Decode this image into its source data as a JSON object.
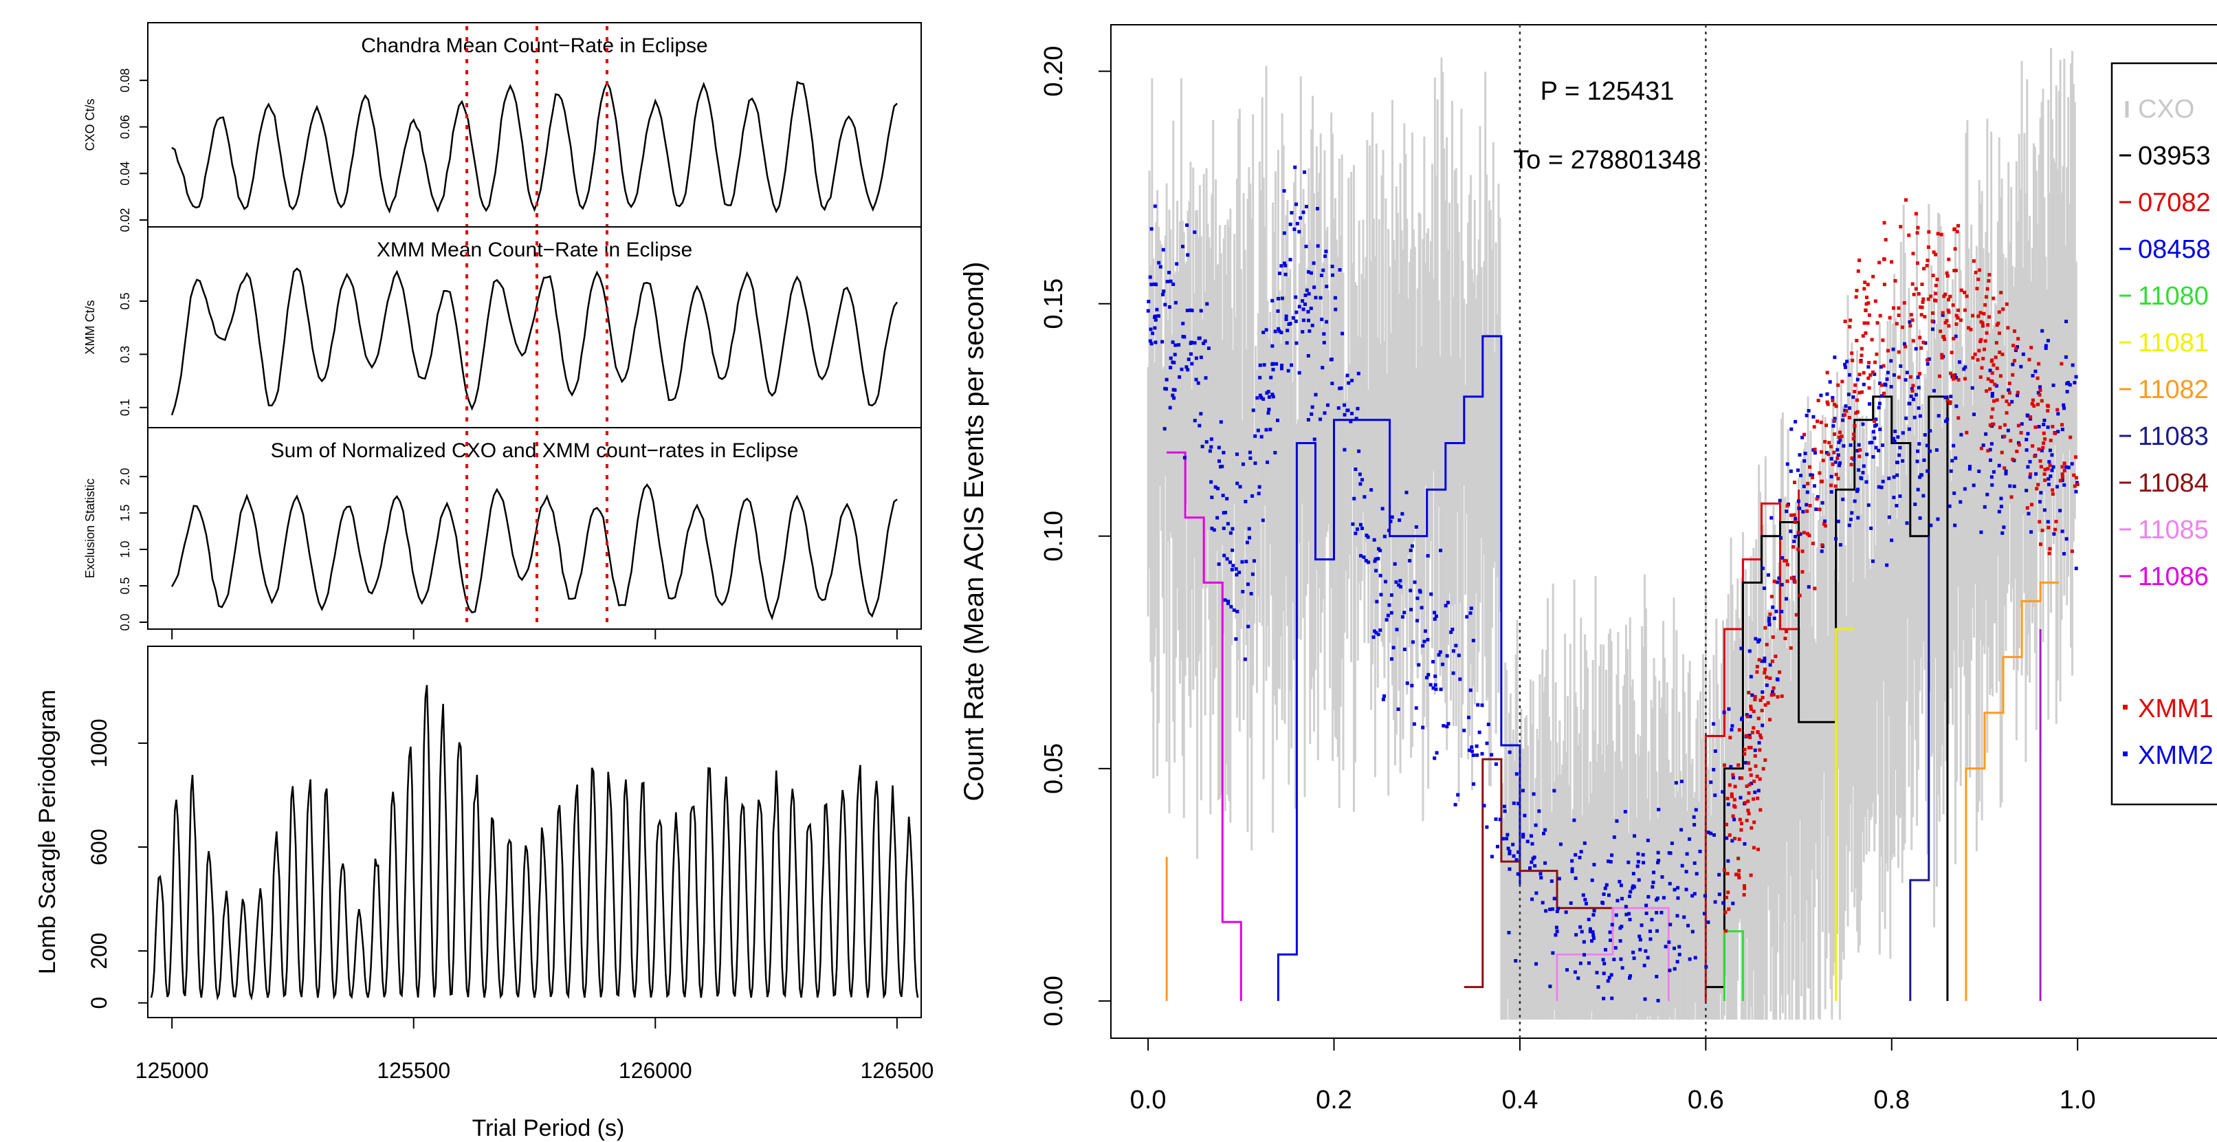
{
  "figure": {
    "left_panels": [
      {
        "id": "cxo",
        "title": "Chandra Mean Count−Rate in Eclipse",
        "ylabel": "CXO Ct/s"
      },
      {
        "id": "xmm",
        "title": "XMM Mean Count−Rate in Eclipse",
        "ylabel": "XMM Ct/s"
      },
      {
        "id": "sum",
        "title": "Sum of Normalized CXO and XMM count−rates in Eclipse",
        "ylabel": "Exclusion Statistic"
      }
    ],
    "lomb": {
      "ylabel": "Lomb Scargle Periodogram",
      "xlabel": "Trial Period (s)"
    },
    "right": {
      "ylabel": "Count Rate (Mean ACIS Events per second)",
      "annotation_period": "P = 125431",
      "annotation_t0": "To = 278801348",
      "legend": [
        {
          "label": "CXO",
          "color": "#c8c8c8",
          "marker": "bar"
        },
        {
          "label": "03953",
          "color": "#000000",
          "marker": "line"
        },
        {
          "label": "07082",
          "color": "#e00000",
          "marker": "line"
        },
        {
          "label": "08458",
          "color": "#0000e0",
          "marker": "line"
        },
        {
          "label": "11080",
          "color": "#33dd33",
          "marker": "line"
        },
        {
          "label": "11081",
          "color": "#f0f000",
          "marker": "line"
        },
        {
          "label": "11082",
          "color": "#ff9a1e",
          "marker": "line"
        },
        {
          "label": "11083",
          "color": "#1a1a8c",
          "marker": "line"
        },
        {
          "label": "11084",
          "color": "#8b1010",
          "marker": "line"
        },
        {
          "label": "11085",
          "color": "#ee82ee",
          "marker": "line"
        },
        {
          "label": "11086",
          "color": "#e000e0",
          "marker": "line"
        },
        {
          "label": "XMM1",
          "color": "#e00000",
          "marker": "dot"
        },
        {
          "label": "XMM2",
          "color": "#0000e0",
          "marker": "dot"
        }
      ]
    }
  },
  "chart_data": [
    {
      "type": "line",
      "title": "Chandra Mean Count−Rate in Eclipse",
      "ylabel": "CXO Ct/s",
      "xlim": [
        124950,
        126550
      ],
      "ylim": [
        0.02,
        0.09
      ],
      "yticks": [
        "0.02",
        "0.04",
        "0.06",
        "0.08"
      ],
      "vlines": [
        125610,
        125755,
        125900
      ],
      "series": [
        {
          "values": [
            0.05,
            0.025,
            0.065,
            0.025,
            0.07,
            0.025,
            0.068,
            0.025,
            0.073,
            0.025,
            0.062,
            0.025,
            0.07,
            0.025,
            0.078,
            0.025,
            0.075,
            0.025,
            0.078,
            0.025,
            0.07,
            0.025,
            0.078,
            0.025,
            0.072,
            0.025,
            0.08,
            0.025,
            0.065,
            0.025,
            0.07
          ]
        }
      ]
    },
    {
      "type": "line",
      "title": "XMM Mean Count−Rate in Eclipse",
      "ylabel": "XMM Ct/s",
      "xlim": [
        124950,
        126550
      ],
      "ylim": [
        0.05,
        0.65
      ],
      "yticks": [
        "0.1",
        "0.3",
        "0.5"
      ],
      "vlines": [
        125610,
        125755,
        125900
      ],
      "series": [
        {
          "values": [
            0.08,
            0.58,
            0.35,
            0.6,
            0.1,
            0.62,
            0.2,
            0.6,
            0.25,
            0.6,
            0.2,
            0.55,
            0.1,
            0.58,
            0.3,
            0.6,
            0.15,
            0.6,
            0.2,
            0.58,
            0.12,
            0.55,
            0.2,
            0.6,
            0.15,
            0.58,
            0.2,
            0.55,
            0.1,
            0.5
          ]
        }
      ]
    },
    {
      "type": "line",
      "title": "Sum of Normalized CXO and XMM count−rates in Eclipse",
      "ylabel": "Exclusion Statistic",
      "xlim": [
        124950,
        126550
      ],
      "ylim": [
        0.0,
        2.2
      ],
      "yticks": [
        "0.0",
        "0.5",
        "1.0",
        "1.5",
        "2.0"
      ],
      "vlines": [
        125610,
        125755,
        125900
      ],
      "series": [
        {
          "values": [
            0.5,
            1.6,
            0.2,
            1.7,
            0.3,
            1.7,
            0.2,
            1.6,
            0.4,
            1.7,
            0.3,
            1.6,
            0.1,
            1.8,
            0.6,
            1.7,
            0.3,
            1.6,
            0.2,
            1.9,
            0.3,
            1.6,
            0.2,
            1.7,
            0.1,
            1.7,
            0.3,
            1.6,
            0.1,
            1.7
          ]
        }
      ]
    },
    {
      "type": "line",
      "title": "",
      "xlabel": "Trial Period (s)",
      "ylabel": "Lomb Scargle Periodogram",
      "xlim": [
        124950,
        126550
      ],
      "ylim": [
        -30,
        1320
      ],
      "xticks": [
        125000,
        125500,
        126000,
        126500
      ],
      "yticks": [
        0,
        200,
        600,
        1000
      ],
      "series": [
        {
          "values": [
            400,
            1000,
            430,
            380,
            900,
            850,
            330,
            870,
            1300,
            1030,
            650,
            640,
            860,
            940,
            870,
            730,
            960,
            830,
            900,
            760,
            950,
            870,
            700
          ]
        }
      ]
    },
    {
      "type": "scatter",
      "title": "",
      "xlabel": "",
      "ylabel": "Count Rate (Mean ACIS Events per second)",
      "xlim": [
        -0.04,
        1.15
      ],
      "ylim": [
        -0.008,
        0.21
      ],
      "xticks": [
        0.0,
        0.2,
        0.4,
        0.6,
        0.8,
        1.0
      ],
      "yticks": [
        0.0,
        0.05,
        0.1,
        0.15,
        0.2
      ],
      "vlines": [
        0.4,
        0.6
      ],
      "legend_position": "top-right",
      "series": [
        {
          "name": "XMM2",
          "x": [
            0.0,
            0.05,
            0.1,
            0.15,
            0.2,
            0.25,
            0.3,
            0.35,
            0.4,
            0.45,
            0.5,
            0.55,
            0.6,
            0.65,
            0.7,
            0.75,
            0.8,
            0.85,
            0.9,
            0.95,
            1.0
          ],
          "y": [
            0.15,
            0.14,
            0.09,
            0.16,
            0.14,
            0.09,
            0.08,
            0.06,
            0.03,
            0.015,
            0.015,
            0.02,
            0.03,
            0.06,
            0.11,
            0.12,
            0.12,
            0.13,
            0.12,
            0.12,
            0.12
          ]
        },
        {
          "name": "XMM1",
          "x": [
            0.62,
            0.65,
            0.7,
            0.75,
            0.8,
            0.85,
            0.9,
            0.95,
            1.0
          ],
          "y": [
            0.03,
            0.05,
            0.1,
            0.13,
            0.15,
            0.15,
            0.14,
            0.12,
            0.11
          ]
        }
      ]
    }
  ]
}
